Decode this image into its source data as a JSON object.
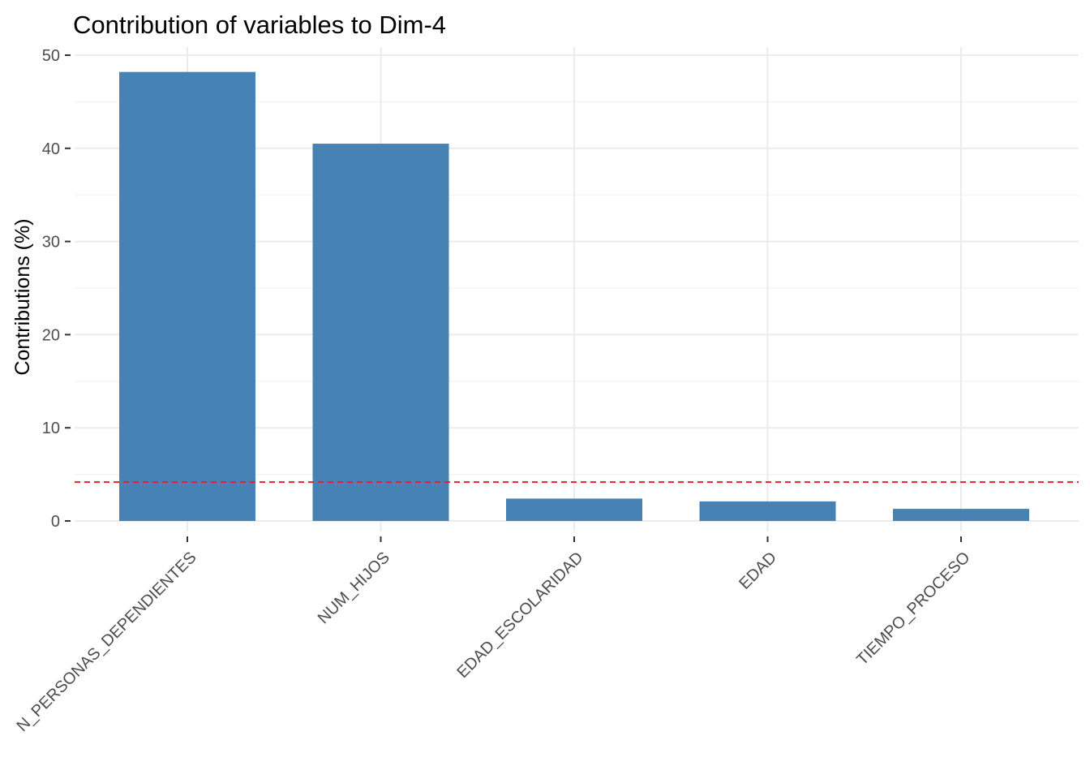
{
  "chart_data": {
    "type": "bar",
    "title": "Contribution of variables to Dim-4",
    "xlabel": "",
    "ylabel": "Contributions (%)",
    "categories": [
      "N_PERSONAS_DEPENDIENTES",
      "NUM_HIJOS",
      "EDAD_ESCOLARIDAD",
      "EDAD",
      "TIEMPO_PROCESO"
    ],
    "values": [
      48.2,
      40.5,
      2.4,
      2.1,
      1.3
    ],
    "ylim": [
      0,
      50
    ],
    "yticks": [
      0,
      10,
      20,
      30,
      40,
      50
    ],
    "reference_line": {
      "value": 4.17,
      "style": "dashed",
      "color": "#d62728"
    },
    "bar_color": "#4682b4",
    "grid": true,
    "xtick_rotation": "45 degrees"
  }
}
